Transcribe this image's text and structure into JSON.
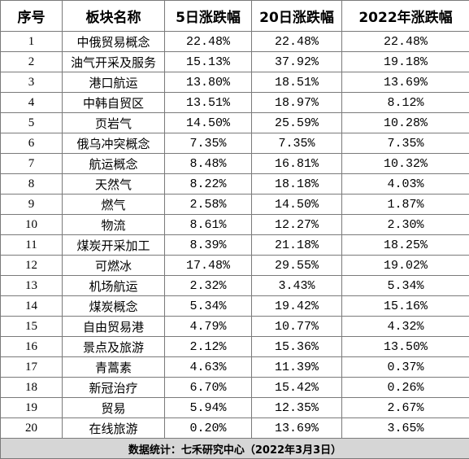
{
  "table": {
    "headers": [
      "序号",
      "板块名称",
      "5日涨跌幅",
      "20日涨跌幅",
      "2022年涨跌幅"
    ],
    "rows": [
      [
        "1",
        "中俄贸易概念",
        "22.48%",
        "22.48%",
        "22.48%"
      ],
      [
        "2",
        "油气开采及服务",
        "15.13%",
        "37.92%",
        "19.18%"
      ],
      [
        "3",
        "港口航运",
        "13.80%",
        "18.51%",
        "13.69%"
      ],
      [
        "4",
        "中韩自贸区",
        "13.51%",
        "18.97%",
        "8.12%"
      ],
      [
        "5",
        "页岩气",
        "14.50%",
        "25.59%",
        "10.28%"
      ],
      [
        "6",
        "俄乌冲突概念",
        "7.35%",
        "7.35%",
        "7.35%"
      ],
      [
        "7",
        "航运概念",
        "8.48%",
        "16.81%",
        "10.32%"
      ],
      [
        "8",
        "天然气",
        "8.22%",
        "18.18%",
        "4.03%"
      ],
      [
        "9",
        "燃气",
        "2.58%",
        "14.50%",
        "1.87%"
      ],
      [
        "10",
        "物流",
        "8.61%",
        "12.27%",
        "2.30%"
      ],
      [
        "11",
        "煤炭开采加工",
        "8.39%",
        "21.18%",
        "18.25%"
      ],
      [
        "12",
        "可燃冰",
        "17.48%",
        "29.55%",
        "19.02%"
      ],
      [
        "13",
        "机场航运",
        "2.32%",
        "3.43%",
        "5.34%"
      ],
      [
        "14",
        "煤炭概念",
        "5.34%",
        "19.42%",
        "15.16%"
      ],
      [
        "15",
        "自由贸易港",
        "4.79%",
        "10.77%",
        "4.32%"
      ],
      [
        "16",
        "景点及旅游",
        "2.12%",
        "15.36%",
        "13.50%"
      ],
      [
        "17",
        "青蒿素",
        "4.63%",
        "11.39%",
        "0.37%"
      ],
      [
        "18",
        "新冠治疗",
        "6.70%",
        "15.42%",
        "0.26%"
      ],
      [
        "19",
        "贸易",
        "5.94%",
        "12.35%",
        "2.67%"
      ],
      [
        "20",
        "在线旅游",
        "0.20%",
        "13.69%",
        "3.65%"
      ]
    ],
    "footer": "数据统计：七禾研究中心（2022年3月3日）"
  }
}
